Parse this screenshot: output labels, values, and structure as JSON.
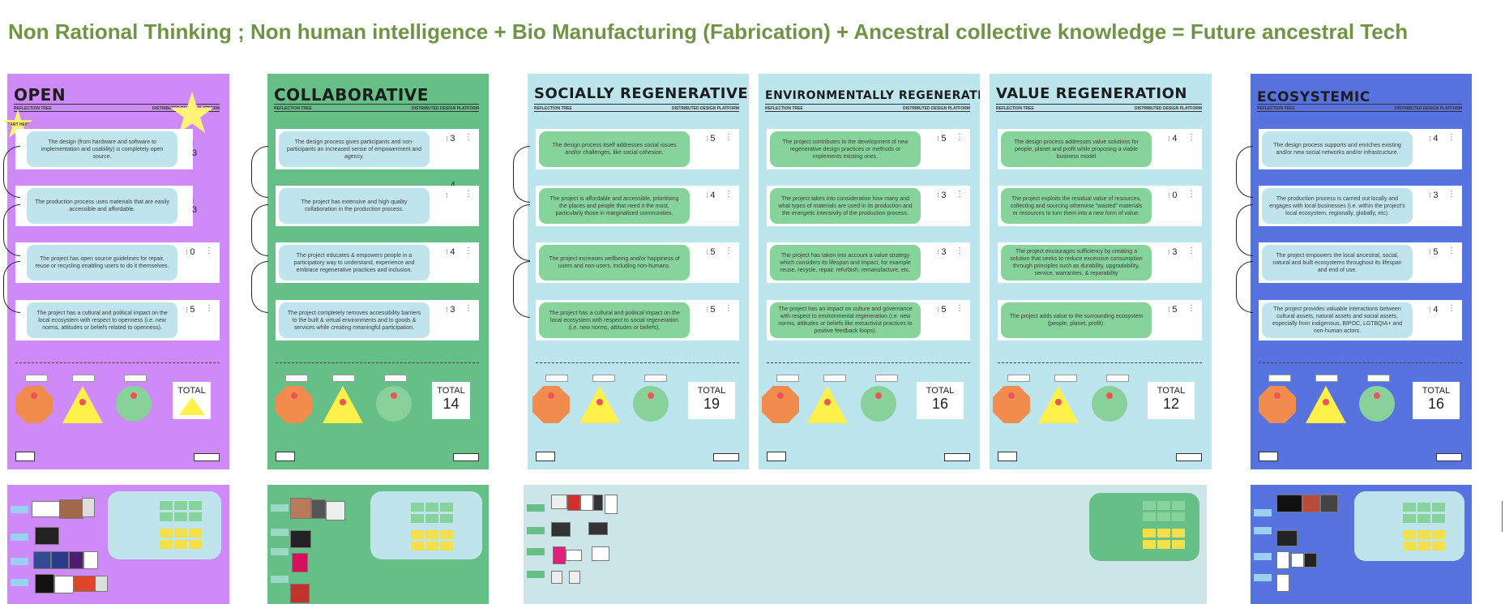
{
  "headline": "Non Rational Thinking  ; Non human intelligence  +  Bio Manufacturing (Fabrication) + Ancestral collective knowledge = Future ancestral Tech",
  "colors": {
    "headline": "#6f9446",
    "open_board": "#cf8af9",
    "collab_board": "#66bf86",
    "regen_board": "#bde5ed",
    "eco_board": "#5773df",
    "question_blue": "#bfe4ec",
    "question_green": "#86d39c",
    "stop": "#f28c4e",
    "warn": "#fff14a",
    "go": "#89d19a"
  },
  "common": {
    "reflection_tree": "REFLECTION TREE",
    "platform": "DISTRIBUTED DESIGN PLATFORM",
    "total": "TOTAL",
    "start_here": "START HERE"
  },
  "boards": {
    "open": {
      "title": "OPEN",
      "q1": "The design (from hardware and software to implementation and usability) is completely open source.",
      "s1": "3",
      "q2": "The production process uses materials that are easily accessible and affordable.",
      "s2": "3",
      "q3": "The project has open source guidelines for repair, reuse or recycling enabling users to do it themselves.",
      "s3": "0",
      "q4": "The project has a cultural and political impact on the local ecosystem with respect to openness (i.e. new norms, attitudes or beliefs related to openness).",
      "s4": "5"
    },
    "collab": {
      "title": "COLLABORATIVE",
      "q1": "The design process gives participants and non-participants an increased sense of empowerment and agency.",
      "s1": "3",
      "q2": "The project has extensive and high quality collaboration in the production process.",
      "s2": "",
      "stray": "4",
      "q3": "The project educates & empowers people in a participatory way to understand, experience and embrace regenerative practices and inclusion.",
      "s3": "4",
      "q4": "The project completely removes accessibility barriers to the built & virtual environments and to goods & services while creating meaningful participation.",
      "s4": "3",
      "total": "14"
    },
    "social": {
      "title": "SOCIALLY REGENERATIVE",
      "q1": "The design process itself addresses social issues and/or challenges, like social cohesion.",
      "s1": "5",
      "q2": "The project is affordable and accessible, prioritising the places and people that need it the most, particularly those in marginalised communities.",
      "s2": "4",
      "q3": "The project increases wellbeing and/or happiness of users and non-users, including non-humans.",
      "s3": "5",
      "q4": "The project has a cultural and political impact on the local ecosystem with respect to social regeneration (i.e. new norms, attitudes or beliefs).",
      "s4": "5",
      "total": "19"
    },
    "env": {
      "title": "ENVIRONMENTALLY REGENERATIVE",
      "q1": "The project contributes to the development of new regenerative design practices or methods or implements existing ones.",
      "s1": "5",
      "q2": "The project takes into consideration how many and what types of materials are used in its production and the energetic intensivity of the production process.",
      "s2": "3",
      "q3": "The project has taken into account a value strategy which considers its lifespan and impact, for example reuse, recycle, repair, refurbish, remanufacture, etc.",
      "s3": "3",
      "q4": "The project has an impact on culture and governance with respect to environmental regeneration (i.e. new norms, attitudes or beliefs like extractivist practices to positive feedback loops).",
      "s4": "5",
      "total": "16"
    },
    "value": {
      "title": "VALUE REGENERATION",
      "q1": "The design process addresses value solutions for people, planet and profit while proposing a viable business model",
      "s1": "4",
      "q2": "The project exploits the residual value of resources, collecting and sourcing otherwise \"wasted\" materials or resources to turn them into a new form of value.",
      "s2": "0",
      "q3": "The project encourages sufficiency by creating a solution that seeks to reduce excessive consumption through principles such as durability, upgradability, service, warranties, & reparability",
      "s3": "3",
      "q4": "The project adds value to the surrounding ecosystem (people, planet, profit).",
      "s4": "5",
      "total": "12"
    },
    "eco": {
      "title": "ECOSYSTEMIC",
      "q1": "The design process supports and enriches existing and/or new social networks and/or infrastructure.",
      "s1": "4",
      "q2": "The production process is carried out locally and engages with local businesses (i.e. within the project's local ecosystem, regionally, globally, etc).",
      "s2": "3",
      "q3": "The project empowers the local ancestral, social, natural and built ecosystems throughout its lifespan and end of use.",
      "s3": "5",
      "q4": "The project provides valuable interactions between cultural assets, natural assets and social assets, especially from indigenous, BIPOC, LGTBQIA+ and non-human actors.",
      "s4": "4",
      "total": "16"
    }
  }
}
